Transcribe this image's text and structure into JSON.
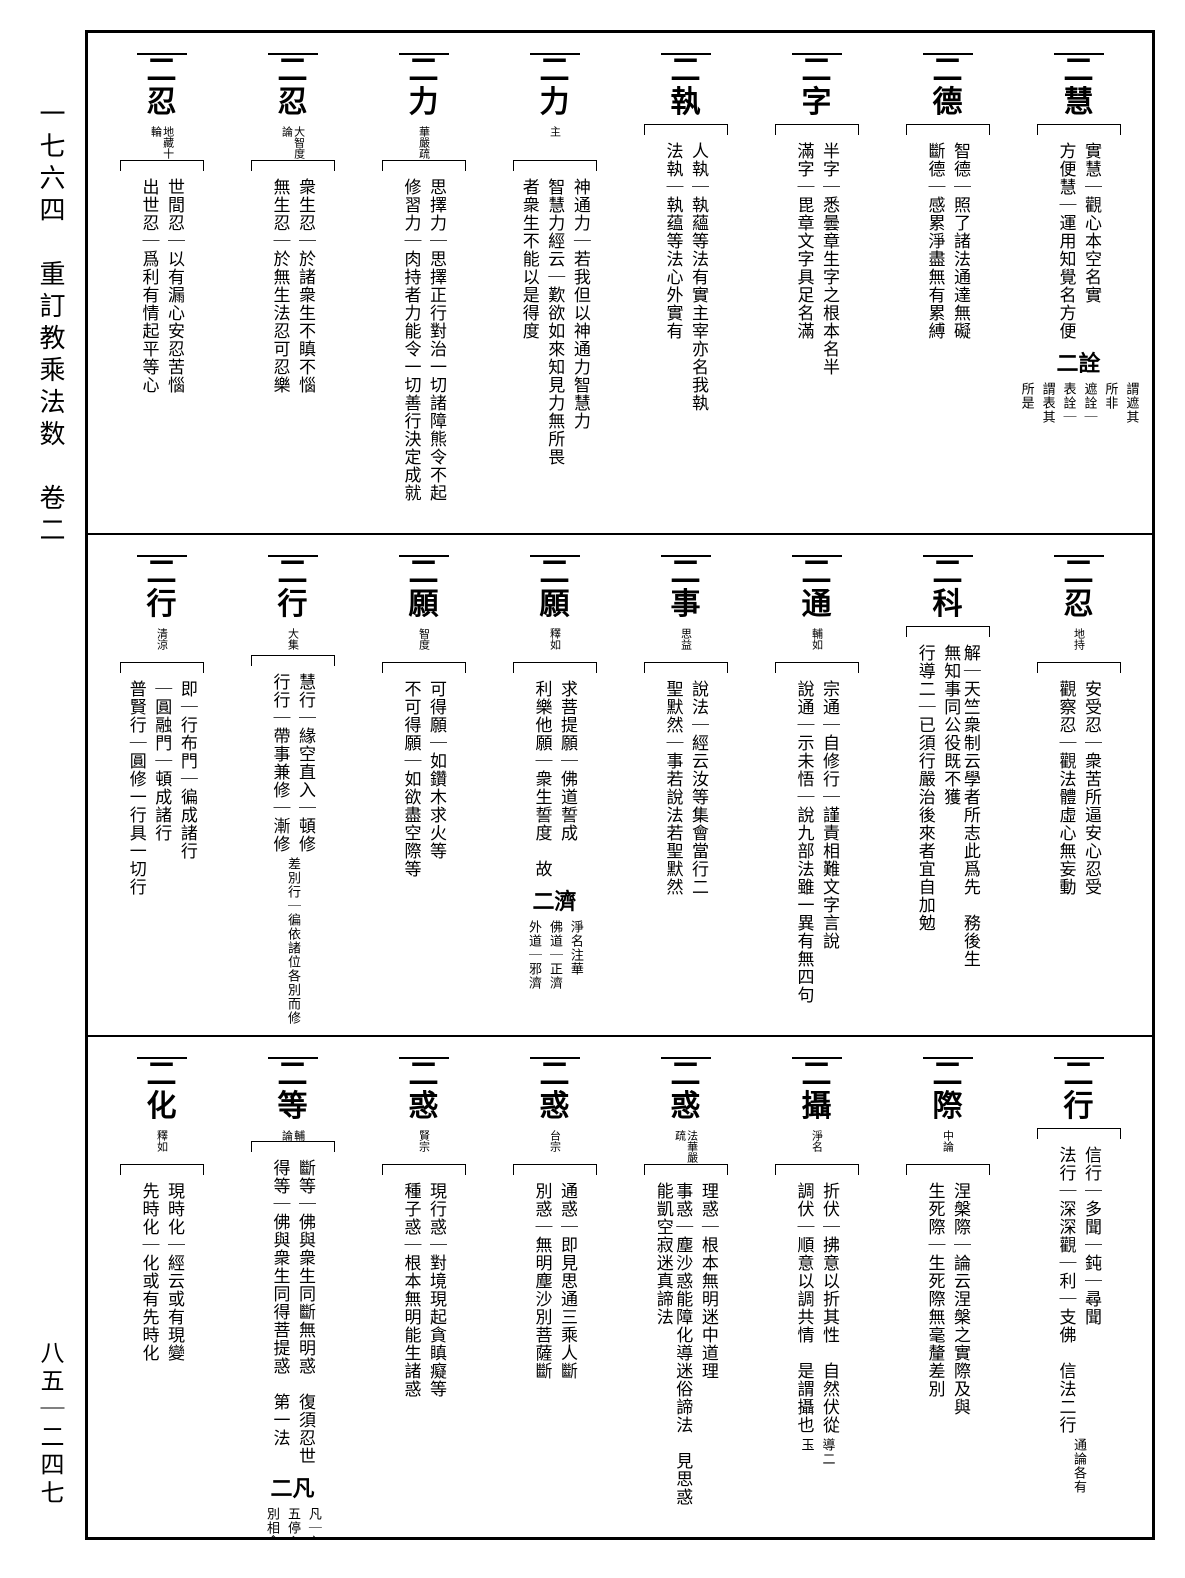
{
  "page": {
    "left_label_top": "一七六四　重訂教乘法数　卷二",
    "left_label_bottom": "八五｜二四七",
    "bg": "#ffffff",
    "ink": "#000000"
  },
  "rows": [
    {
      "entries": [
        {
          "title": "二慧",
          "note": "",
          "branches": [
            {
              "head": "實",
              "text": "慧｜觀心本空名實"
            },
            {
              "head": "方便慧",
              "text": "｜運用知覺名方便"
            }
          ],
          "tail": [
            {
              "t": "謂遮其"
            },
            {
              "t": "所非"
            },
            {
              "t": "遮詮｜"
            },
            {
              "t": "表詮｜"
            },
            {
              "t": "謂表其"
            },
            {
              "t": "所是"
            }
          ],
          "mid": "二詮"
        },
        {
          "title": "二德",
          "note": "",
          "branches": [
            {
              "head": "智",
              "text": "德｜照了諸法通達無礙"
            },
            {
              "head": "斷",
              "text": "德｜感累淨盡無有累縛"
            }
          ]
        },
        {
          "title": "二字",
          "note": "",
          "branches": [
            {
              "head": "半字",
              "text": "｜悉曇章生字之根本名半"
            },
            {
              "head": "滿字",
              "text": "｜毘章文字具足名滿"
            }
          ]
        },
        {
          "title": "二執",
          "note": "",
          "branches": [
            {
              "head": "人執",
              "text": "｜執蘊等法有實主宰亦名我執"
            },
            {
              "head": "法執",
              "text": "｜執蕴等法心外實有"
            }
          ]
        },
        {
          "title": "二力",
          "note": "主",
          "branches": [
            {
              "head": "神通",
              "text": "力｜若我但以神通力智慧力"
            },
            {
              "head": "智慧",
              "text": "力經云｜歎欲如來知見力無所畏"
            },
            {
              "head": "",
              "text": "者衆生不能以是得度"
            }
          ]
        },
        {
          "title": "二力",
          "note": "華嚴疏",
          "branches": [
            {
              "head": "思擇力",
              "text": "｜思擇正行對治一切諸障熊令不起"
            },
            {
              "head": "修習力",
              "text": "｜肉持者力能令一切善行決定成就"
            }
          ]
        },
        {
          "title": "二忍",
          "note": "大智度論",
          "branches": [
            {
              "head": "衆生",
              "text": "忍｜於諸衆生不瞋不惱"
            },
            {
              "head": "無生",
              "text": "忍｜於無生法忍可忍樂"
            }
          ]
        },
        {
          "title": "二忍",
          "note": "地藏十輪",
          "branches": [
            {
              "head": "世間",
              "text": "忍｜以有漏心安忍苦惱"
            },
            {
              "head": "出世",
              "text": "忍｜爲利有情起平等心"
            }
          ]
        }
      ]
    },
    {
      "entries": [
        {
          "title": "二忍",
          "note": "地持",
          "branches": [
            {
              "head": "安受",
              "text": "忍｜衆苦所逼安心忍受"
            },
            {
              "head": "觀察",
              "text": "忍｜觀法體虛心無妄動"
            }
          ]
        },
        {
          "title": "二科",
          "note": "",
          "branches": [
            {
              "head": "解",
              "text": "｜天竺衆制云學者所志此爲先　務後生無知事同公役既不獲"
            },
            {
              "head": "行",
              "text": "導二｜已須行嚴治後來者宜自加勉"
            }
          ]
        },
        {
          "title": "二通",
          "note": "輔如",
          "branches": [
            {
              "head": "宗",
              "text": "通｜自修行｜謹責相難文字言說"
            },
            {
              "head": "說",
              "text": "通｜示未悟｜說九部法雖一異有無四句"
            }
          ]
        },
        {
          "title": "二事",
          "note": "思益",
          "branches": [
            {
              "head": "說法",
              "text": "｜經云汝等集會當行二"
            },
            {
              "head": "聖默然",
              "text": "｜事若說法若聖默然"
            }
          ]
        },
        {
          "title": "二願",
          "note": "釋如",
          "branches": [
            {
              "head": "求菩提願",
              "text": "｜佛道誓成"
            },
            {
              "head": "利樂他願",
              "text": "｜衆生誓度　故"
            }
          ],
          "mid": "二濟",
          "tail": [
            {
              "t": "淨名注華"
            },
            {
              "t": "佛道｜正濟"
            },
            {
              "t": "外道｜邪濟"
            }
          ]
        },
        {
          "title": "二願",
          "note": "智度",
          "branches": [
            {
              "head": "可得願",
              "text": "｜如鑽木求火等"
            },
            {
              "head": "不可得願",
              "text": "｜如欲盡空際等"
            }
          ]
        },
        {
          "title": "二行",
          "note": "大集",
          "branches": [
            {
              "head": "慧行",
              "text": "｜緣空直入｜頓修"
            },
            {
              "head": "行行",
              "text": "｜帶事兼修｜漸修"
            }
          ],
          "tail": [
            {
              "t": "差別行｜徧依諸位各別而修"
            }
          ]
        },
        {
          "title": "二行",
          "note": "清涼",
          "branches": [
            {
              "head": "即",
              "text": "｜行布門｜徧成諸行"
            },
            {
              "head": "",
              "text": "｜圓融門｜頓成諸行"
            },
            {
              "head": "普賢行",
              "text": "｜圓修一行具一切行"
            }
          ]
        }
      ]
    },
    {
      "entries": [
        {
          "title": "二行",
          "note": "",
          "branches": [
            {
              "head": "信",
              "text": "行｜多聞｜鈍｜尋聞"
            },
            {
              "head": "法",
              "text": "行｜深深觀｜利｜支佛　信法二行"
            }
          ],
          "tail": [
            {
              "t": "通論各有"
            }
          ]
        },
        {
          "title": "二際",
          "note": "中論",
          "branches": [
            {
              "head": "涅槃",
              "text": "際｜論云涅槃之實際及與"
            },
            {
              "head": "生死",
              "text": "際｜生死際無毫釐差別"
            }
          ]
        },
        {
          "title": "二攝",
          "note": "淨名",
          "branches": [
            {
              "head": "折伏",
              "text": "｜拂意以折其性　自然伏從"
            },
            {
              "head": "調伏",
              "text": "｜順意以調共情　是謂攝也"
            }
          ],
          "tail": [
            {
              "t": "導二"
            },
            {
              "t": "玉"
            }
          ]
        },
        {
          "title": "二惑",
          "note": "法華嚴疏",
          "branches": [
            {
              "head": "理惑",
              "text": "｜根本無明迷中道理"
            },
            {
              "head": "事惑",
              "text": "｜塵沙惑能障化導迷俗諦法　見思惑能凱空寂迷真諦法"
            }
          ]
        },
        {
          "title": "二惑",
          "note": "台宗",
          "branches": [
            {
              "head": "通",
              "text": "惑｜即見思通三乘人斷"
            },
            {
              "head": "別",
              "text": "惑｜無明塵沙別菩薩斷"
            }
          ]
        },
        {
          "title": "二惑",
          "note": "賢宗",
          "branches": [
            {
              "head": "現行",
              "text": "惑｜對境現起貪瞋癡等"
            },
            {
              "head": "種子",
              "text": "惑｜根本無明能生諸惑"
            }
          ]
        },
        {
          "title": "二等",
          "note": "輔論",
          "branches": [
            {
              "head": "斷等",
              "text": "｜佛與衆生同斷無明惑　復須忍世"
            },
            {
              "head": "得等",
              "text": "｜佛與衆生同得菩提惑　第一法"
            }
          ],
          "mid": "二凡",
          "tail": [
            {
              "t": "凡｜內｜外"
            },
            {
              "t": "五停心緣"
            },
            {
              "t": "別相念"
            }
          ]
        },
        {
          "title": "二化",
          "note": "釋如",
          "branches": [
            {
              "head": "現時化",
              "text": "｜經云或有現變"
            },
            {
              "head": "先時化",
              "text": "｜化或有先時化"
            }
          ]
        }
      ]
    }
  ]
}
